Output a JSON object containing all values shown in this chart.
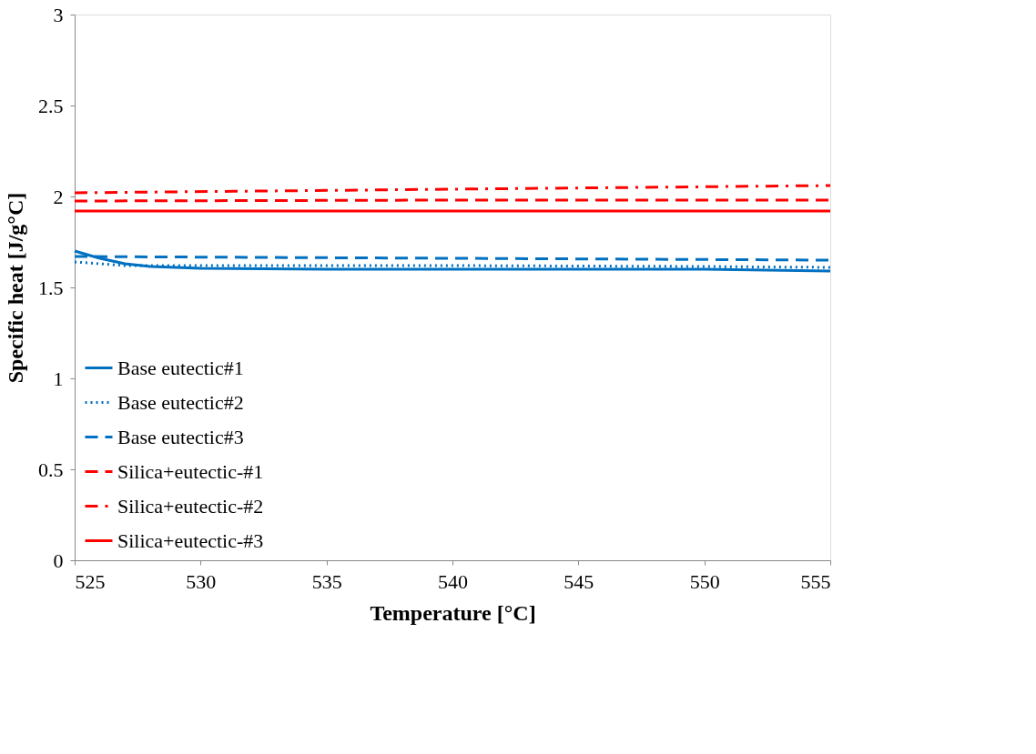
{
  "chart_data": {
    "type": "line",
    "xlabel": "Temperature [°C]",
    "ylabel": "Specific heat [J/g°C]",
    "xlim": [
      525,
      555
    ],
    "xticks": [
      525,
      530,
      535,
      540,
      545,
      550,
      555
    ],
    "ylim": [
      0,
      3
    ],
    "yticks": [
      0,
      0.5,
      1,
      1.5,
      2,
      2.5,
      3
    ],
    "grid": false,
    "legend": "bottom left",
    "marker": "none",
    "series": [
      {
        "name": "Base eutectic#1",
        "color": "#0070c0",
        "line_style": "solid",
        "x": [
          525,
          526,
          527,
          528,
          529,
          530,
          535,
          540,
          545,
          550,
          555
        ],
        "values": [
          1.7,
          1.66,
          1.63,
          1.615,
          1.61,
          1.605,
          1.6,
          1.6,
          1.6,
          1.6,
          1.59
        ]
      },
      {
        "name": "Base eutectic#2",
        "color": "#0070c0",
        "line_style": "dotted",
        "x": [
          525,
          527,
          530,
          540,
          550,
          555
        ],
        "values": [
          1.64,
          1.62,
          1.62,
          1.62,
          1.615,
          1.61
        ]
      },
      {
        "name": "Base eutectic#3",
        "color": "#0070c0",
        "line_style": "dashed",
        "x": [
          525,
          540,
          555
        ],
        "values": [
          1.67,
          1.66,
          1.65
        ]
      },
      {
        "name": "Silica+eutectic-#1",
        "color": "#ff0000",
        "line_style": "dashed",
        "x": [
          525,
          540,
          555
        ],
        "values": [
          1.975,
          1.98,
          1.98
        ]
      },
      {
        "name": "Silica+eutectic-#2",
        "color": "#ff0000",
        "line_style": "dashdot",
        "x": [
          525,
          540,
          555
        ],
        "values": [
          2.02,
          2.04,
          2.06
        ]
      },
      {
        "name": "Silica+eutectic-#3",
        "color": "#ff0000",
        "line_style": "solid",
        "x": [
          525,
          540,
          555
        ],
        "values": [
          1.92,
          1.92,
          1.92
        ]
      }
    ]
  }
}
